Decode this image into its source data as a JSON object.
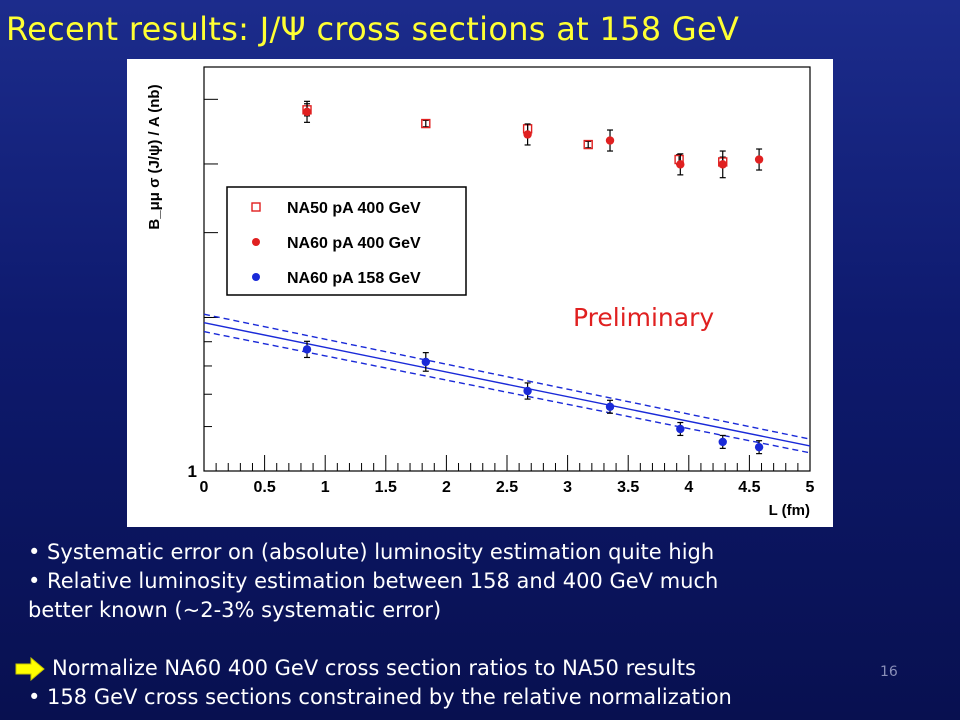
{
  "slide": {
    "title": "Recent results: J/Ψ cross sections at 158 GeV",
    "page_number": "16",
    "bullets": [
      "• Systematic error on (absolute) luminosity estimation quite high",
      "• Relative luminosity estimation between 158 and 400 GeV much",
      "better known (~2-3% systematic error)",
      "Normalize NA60 400 GeV cross section ratios to NA50 results",
      "• 158 GeV cross sections constrained by the relative normalization"
    ],
    "colors": {
      "title": "#ffff33",
      "arrow": "#ffff00",
      "background": "#0e1a6e"
    }
  },
  "chart_data": {
    "type": "scatter",
    "ylabel": "B_μμ σ (J/ψ) / A (nb)",
    "xlabel": "L (fm)",
    "xlim": [
      0,
      5
    ],
    "y_scale": "log",
    "y_tick_label": "1",
    "x_ticks": [
      "0",
      "0.5",
      "1",
      "1.5",
      "2",
      "2.5",
      "3",
      "3.5",
      "4",
      "4.5",
      "5"
    ],
    "annotation": "Preliminary",
    "legend": {
      "position": "top-left"
    },
    "series": [
      {
        "name": "NA50 pA 400 GeV",
        "marker": "open-square",
        "color": "#e02020",
        "points": [
          {
            "x": 0.85,
            "y": 0.894,
            "err": 0.015
          },
          {
            "x": 1.83,
            "y": 0.86,
            "err": 0.008
          },
          {
            "x": 2.67,
            "y": 0.847,
            "err": 0.01
          },
          {
            "x": 3.17,
            "y": 0.808,
            "err": 0.008
          },
          {
            "x": 3.92,
            "y": 0.771,
            "err": 0.012
          },
          {
            "x": 4.28,
            "y": 0.765,
            "err": 0.012
          }
        ]
      },
      {
        "name": "NA60 pA 400 GeV",
        "marker": "filled-circle",
        "color": "#e02020",
        "points": [
          {
            "x": 0.85,
            "y": 0.889,
            "err": 0.026
          },
          {
            "x": 2.67,
            "y": 0.833,
            "err": 0.026
          },
          {
            "x": 3.35,
            "y": 0.818,
            "err": 0.026
          },
          {
            "x": 3.93,
            "y": 0.759,
            "err": 0.026
          },
          {
            "x": 4.28,
            "y": 0.759,
            "err": 0.033
          },
          {
            "x": 4.58,
            "y": 0.771,
            "err": 0.026
          }
        ]
      },
      {
        "name": "NA60 pA 158 GeV",
        "marker": "filled-circle",
        "color": "#1a2ad8",
        "points": [
          {
            "x": 0.85,
            "y": 0.301,
            "err": 0.02
          },
          {
            "x": 1.83,
            "y": 0.27,
            "err": 0.023
          },
          {
            "x": 2.67,
            "y": 0.198,
            "err": 0.02
          },
          {
            "x": 3.35,
            "y": 0.159,
            "err": 0.016
          },
          {
            "x": 3.93,
            "y": 0.104,
            "err": 0.016
          },
          {
            "x": 4.28,
            "y": 0.072,
            "err": 0.016
          },
          {
            "x": 4.58,
            "y": 0.059,
            "err": 0.016
          }
        ]
      }
    ],
    "fit": {
      "color": "#1a2ad8",
      "central": [
        {
          "x": 0,
          "y": 0.367
        },
        {
          "x": 5,
          "y": 0.062
        }
      ],
      "upper": [
        {
          "x": 0,
          "y": 0.388
        },
        {
          "x": 5,
          "y": 0.079
        }
      ],
      "lower": [
        {
          "x": 0,
          "y": 0.345
        },
        {
          "x": 5,
          "y": 0.045
        }
      ]
    }
  }
}
